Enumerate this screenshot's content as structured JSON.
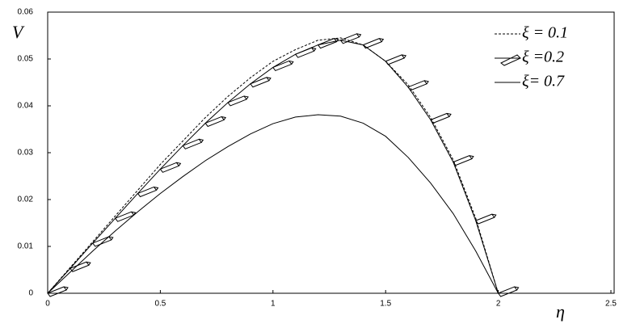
{
  "chart_data": {
    "type": "line",
    "x_label": "η",
    "y_label": "V",
    "x": [
      0,
      0.1,
      0.2,
      0.3,
      0.4,
      0.5,
      0.6,
      0.7,
      0.8,
      0.9,
      1.0,
      1.1,
      1.2,
      1.3,
      1.4,
      1.5,
      1.6,
      1.7,
      1.8,
      1.9,
      2.0
    ],
    "series": [
      {
        "name": "ξ = 0.1",
        "color": "#000000",
        "style": "dotted",
        "values": [
          0,
          0.0055,
          0.011,
          0.0165,
          0.022,
          0.0275,
          0.0325,
          0.0375,
          0.042,
          0.046,
          0.0495,
          0.052,
          0.054,
          0.0545,
          0.053,
          0.0495,
          0.0445,
          0.0375,
          0.0285,
          0.016,
          0
        ]
      },
      {
        "name": "ξ =0.2",
        "color": "#000000",
        "style": "marked",
        "values": [
          0,
          0.0053,
          0.0107,
          0.016,
          0.0213,
          0.0265,
          0.0315,
          0.0363,
          0.0407,
          0.0447,
          0.0482,
          0.051,
          0.053,
          0.054,
          0.053,
          0.0495,
          0.044,
          0.037,
          0.028,
          0.0155,
          0
        ]
      },
      {
        "name": "ξ= 0.7",
        "color": "#000000",
        "style": "solid",
        "values": [
          0,
          0.0045,
          0.009,
          0.0133,
          0.0174,
          0.0213,
          0.0249,
          0.0283,
          0.0313,
          0.034,
          0.0362,
          0.0376,
          0.0381,
          0.0378,
          0.0363,
          0.0335,
          0.029,
          0.0235,
          0.017,
          0.009,
          0
        ]
      }
    ],
    "xlim": [
      0,
      2.5
    ],
    "xticks": [
      0,
      0.5,
      1,
      1.5,
      2,
      2.5
    ],
    "ylim": [
      0,
      0.06
    ],
    "yticks": [
      0,
      0.01,
      0.02,
      0.03,
      0.04,
      0.05,
      0.06
    ],
    "grid": false,
    "legend": "upper right"
  }
}
